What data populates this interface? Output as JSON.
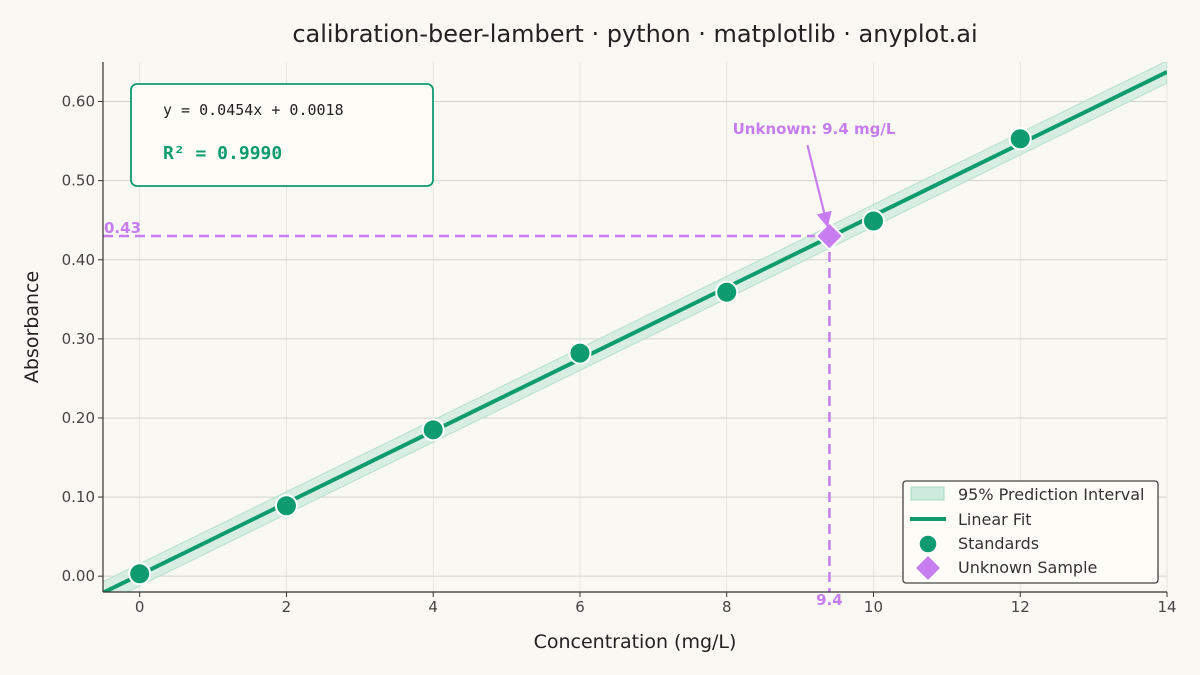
{
  "chart_data": {
    "type": "scatter",
    "title": "calibration-beer-lambert · python · matplotlib · anyplot.ai",
    "xlabel": "Concentration (mg/L)",
    "ylabel": "Absorbance",
    "xlim": [
      -0.5,
      14
    ],
    "ylim": [
      -0.02,
      0.65
    ],
    "x_ticks": [
      0,
      2,
      4,
      6,
      8,
      10,
      12,
      14
    ],
    "y_ticks": [
      0.0,
      0.1,
      0.2,
      0.3,
      0.4,
      0.5,
      0.6
    ],
    "x_tick_labels": [
      "0",
      "2",
      "4",
      "6",
      "8",
      "10",
      "12",
      "14"
    ],
    "y_tick_labels": [
      "0.00",
      "0.10",
      "0.20",
      "0.30",
      "0.40",
      "0.50",
      "0.60"
    ],
    "grid": true,
    "legend_position": "bottom-right",
    "fit": {
      "slope": 0.0454,
      "intercept": 0.0018,
      "interval_halfwidth": 0.014
    },
    "series": [
      {
        "name": "Standards",
        "x": [
          0,
          2,
          4,
          6,
          8,
          10,
          12
        ],
        "y": [
          0.003,
          0.089,
          0.185,
          0.282,
          0.359,
          0.449,
          0.553
        ]
      },
      {
        "name": "Unknown Sample",
        "x": [
          9.4
        ],
        "y": [
          0.43
        ]
      }
    ],
    "equation_text": "y = 0.0454x + 0.0018",
    "r2_text": "R² = 0.9990",
    "unknown_annotation": "Unknown: 9.4 mg/L",
    "unknown_x_label": "9.4",
    "unknown_y_label": "0.43",
    "annotation_arrow_from": [
      9.1,
      0.545
    ],
    "legend": [
      {
        "label": "95% Prediction Interval",
        "kind": "band"
      },
      {
        "label": "Linear Fit",
        "kind": "line"
      },
      {
        "label": "Standards",
        "kind": "dot"
      },
      {
        "label": "Unknown Sample",
        "kind": "diamond"
      }
    ],
    "colors": {
      "fit": "#0E9B6E",
      "band": "#CDEBDC",
      "points": "#0E9B6E",
      "unknown": "#C77DF0",
      "grid": "#D4D2CC",
      "axis": "#333333"
    }
  }
}
